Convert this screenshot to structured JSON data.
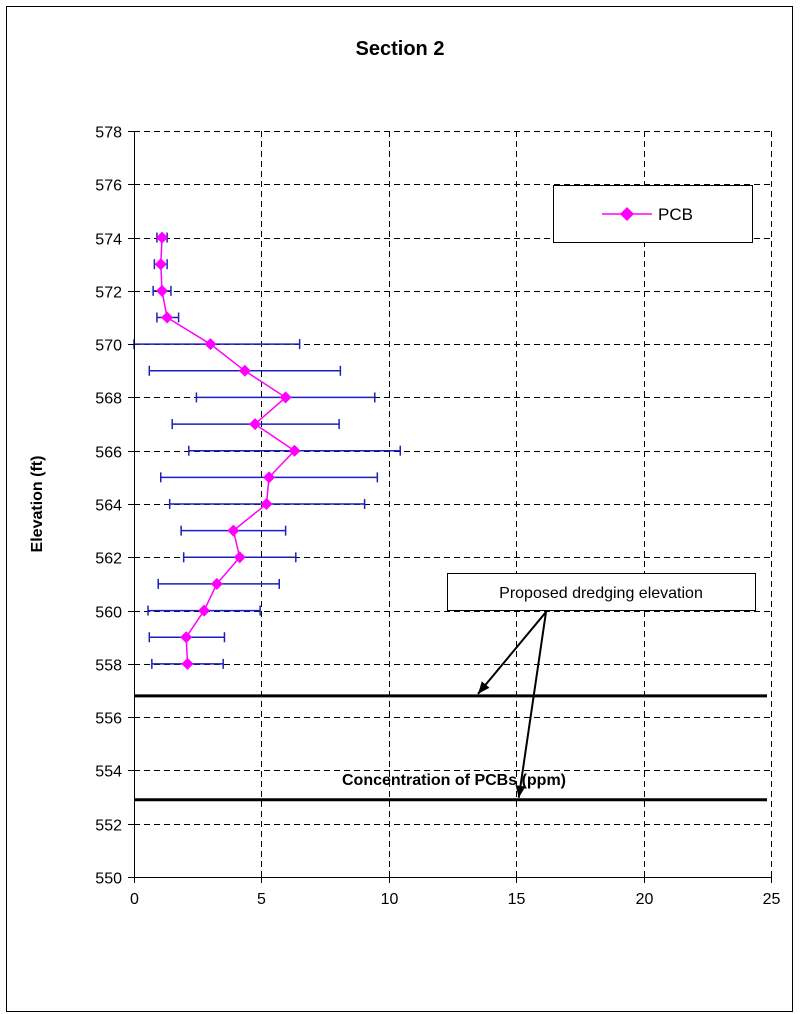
{
  "chart_data": {
    "type": "scatter",
    "title": "Section 2",
    "xlabel": "Concentration of PCBs (ppm)",
    "ylabel": "Elevation (ft)",
    "xlim": [
      0,
      25
    ],
    "ylim": [
      550,
      578
    ],
    "x_ticks": [
      0,
      5,
      10,
      15,
      20,
      25
    ],
    "y_ticks": [
      550,
      552,
      554,
      556,
      558,
      560,
      562,
      564,
      566,
      568,
      570,
      572,
      574,
      576,
      578
    ],
    "grid": "dashed",
    "legend_position": "top-right",
    "series": [
      {
        "name": "PCB",
        "color": "#ff00ff",
        "marker": "diamond",
        "points": [
          {
            "x": 1.1,
            "y": 574,
            "err_low": 0.9,
            "err_high": 1.3
          },
          {
            "x": 1.05,
            "y": 573,
            "err_low": 0.8,
            "err_high": 1.3
          },
          {
            "x": 1.1,
            "y": 572,
            "err_low": 0.75,
            "err_high": 1.45
          },
          {
            "x": 1.3,
            "y": 571,
            "err_low": 0.9,
            "err_high": 1.75
          },
          {
            "x": 3.0,
            "y": 570,
            "err_low": -0.5,
            "err_high": 6.5
          },
          {
            "x": 4.35,
            "y": 569,
            "err_low": 0.6,
            "err_high": 8.1
          },
          {
            "x": 5.95,
            "y": 568,
            "err_low": 2.45,
            "err_high": 9.45
          },
          {
            "x": 4.75,
            "y": 567,
            "err_low": 1.5,
            "err_high": 8.05
          },
          {
            "x": 6.3,
            "y": 566,
            "err_low": 2.15,
            "err_high": 10.45
          },
          {
            "x": 5.3,
            "y": 565,
            "err_low": 1.05,
            "err_high": 9.55
          },
          {
            "x": 5.2,
            "y": 564,
            "err_low": 1.4,
            "err_high": 9.05
          },
          {
            "x": 3.9,
            "y": 563,
            "err_low": 1.85,
            "err_high": 5.95
          },
          {
            "x": 4.15,
            "y": 562,
            "err_low": 1.95,
            "err_high": 6.35
          },
          {
            "x": 3.25,
            "y": 561,
            "err_low": 0.95,
            "err_high": 5.7
          },
          {
            "x": 2.75,
            "y": 560,
            "err_low": 0.55,
            "err_high": 4.95
          },
          {
            "x": 2.05,
            "y": 559,
            "err_low": 0.6,
            "err_high": 3.55
          },
          {
            "x": 2.1,
            "y": 558,
            "err_low": 0.7,
            "err_high": 3.5
          }
        ],
        "error_bar_color": "#1f1fbf"
      }
    ],
    "reference_lines": [
      {
        "y": 556.8,
        "color": "#000000"
      },
      {
        "y": 552.9,
        "color": "#000000"
      }
    ],
    "annotation": {
      "text": "Proposed dredging elevation",
      "targets": [
        {
          "x": 13.5,
          "y": 556.8
        },
        {
          "x": 15.1,
          "y": 552.9
        }
      ]
    }
  }
}
